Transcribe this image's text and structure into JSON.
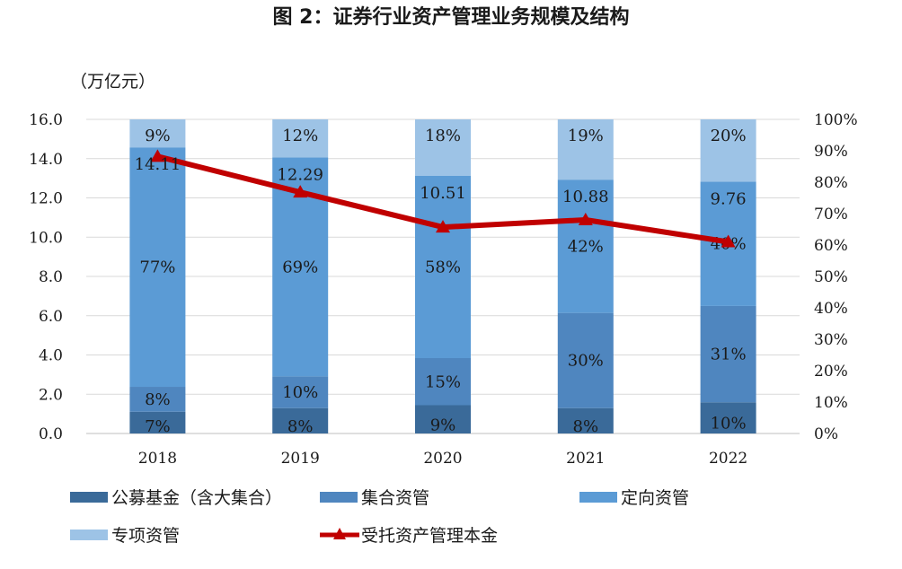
{
  "chart_data": {
    "type": "bar",
    "title": "图 2：证券行业资产管理业务规模及结构",
    "ylabel": "（万亿元）",
    "categories": [
      "2018",
      "2019",
      "2020",
      "2021",
      "2022"
    ],
    "ylim": [
      0,
      16
    ],
    "y_ticks": [
      "0.0",
      "2.0",
      "4.0",
      "6.0",
      "8.0",
      "10.0",
      "12.0",
      "14.0",
      "16.0"
    ],
    "y2lim": [
      0,
      100
    ],
    "y2_ticks": [
      "0%",
      "10%",
      "20%",
      "30%",
      "40%",
      "50%",
      "60%",
      "70%",
      "80%",
      "90%",
      "100%"
    ],
    "stack_total": 16,
    "series": [
      {
        "name": "公募基金（含大集合）",
        "color": "#3a6a99",
        "values": [
          7,
          8,
          9,
          8,
          10
        ],
        "labels": [
          "7%",
          "8%",
          "9%",
          "8%",
          "10%"
        ]
      },
      {
        "name": "集合资管",
        "color": "#4f86bf",
        "values": [
          8,
          10,
          15,
          30,
          31
        ],
        "labels": [
          "8%",
          "10%",
          "15%",
          "30%",
          "31%"
        ]
      },
      {
        "name": "定向资管",
        "color": "#5b9bd5",
        "values": [
          77,
          69,
          58,
          42,
          40
        ],
        "labels": [
          "77%",
          "69%",
          "58%",
          "42%",
          "40%"
        ]
      },
      {
        "name": "专项资管",
        "color": "#9dc3e6",
        "values": [
          9,
          12,
          18,
          19,
          20
        ],
        "labels": [
          "9%",
          "12%",
          "18%",
          "19%",
          "20%"
        ]
      }
    ],
    "line_series": {
      "name": "受托资产管理本金",
      "color": "#c00000",
      "axis": "left",
      "values": [
        14.11,
        12.29,
        10.51,
        10.88,
        9.76
      ],
      "labels": [
        "14.11",
        "12.29",
        "10.51",
        "10.88",
        "9.76"
      ],
      "marker": "triangle"
    },
    "grid": true,
    "legend_position": "bottom"
  }
}
